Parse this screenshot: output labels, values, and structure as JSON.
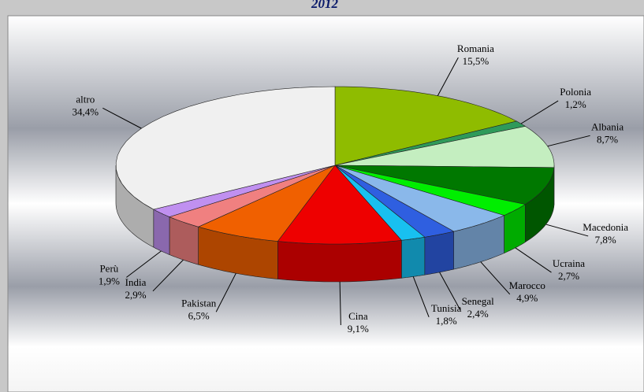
{
  "chart_data": {
    "type": "pie",
    "title": "2012",
    "categories": [
      "Romania",
      "Polonia",
      "Albania",
      "Macedonia",
      "Ucraina",
      "Marocco",
      "Senegal",
      "Tunisia",
      "Cina",
      "Pakistan",
      "India",
      "Perù",
      "altro"
    ],
    "values": [
      15.5,
      1.2,
      8.7,
      7.8,
      2.7,
      4.9,
      2.4,
      1.8,
      9.1,
      6.5,
      2.9,
      1.9,
      34.4
    ],
    "value_labels": [
      "15,5%",
      "1,2%",
      "8,7%",
      "7,8%",
      "2,7%",
      "4,9%",
      "2,4%",
      "1,8%",
      "9,1%",
      "6,5%",
      "2,9%",
      "1,9%",
      "34,4%"
    ],
    "colors": [
      "#8fbc00",
      "#2e9a5a",
      "#c4eec0",
      "#007800",
      "#00ee00",
      "#8ab8ea",
      "#2f5fe0",
      "#18c0f0",
      "#ee0000",
      "#f06000",
      "#f08080",
      "#c090f0",
      "#f0f0f0"
    ]
  }
}
